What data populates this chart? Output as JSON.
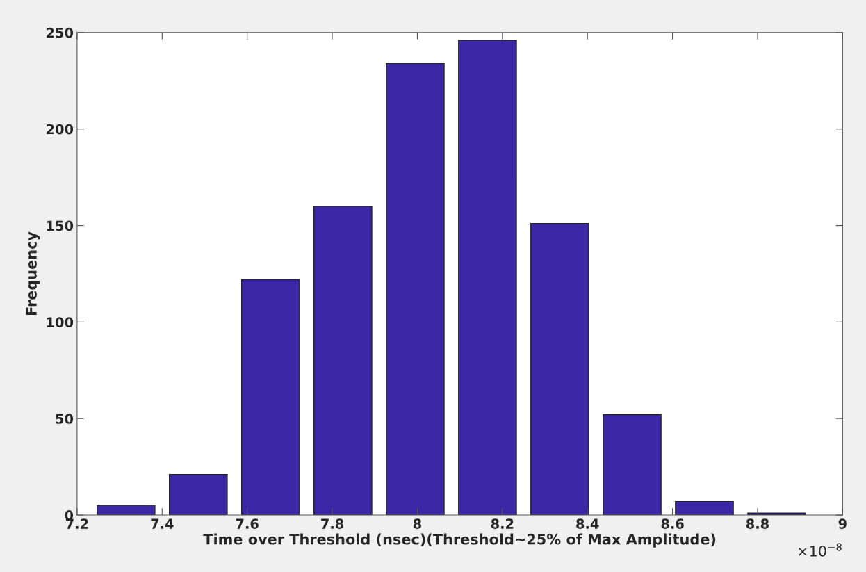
{
  "chart_data": {
    "type": "histogram",
    "xlabel": "Time over Threshold (nsec)(Threshold~25% of Max Amplitude)",
    "ylabel": "Frequency",
    "bins": [
      7.23,
      7.4,
      7.57,
      7.74,
      7.91,
      8.08,
      8.25,
      8.42,
      8.59,
      8.76,
      8.93
    ],
    "values": [
      5,
      21,
      122,
      160,
      234,
      246,
      151,
      52,
      7,
      1
    ],
    "color": "#3c27a6",
    "xlim": [
      7.2,
      9
    ],
    "xticks": [
      7.2,
      7.4,
      7.6,
      7.8,
      8,
      8.2,
      8.4,
      8.6,
      8.8,
      9
    ],
    "ylim": [
      0,
      250
    ],
    "yticks": [
      0,
      50,
      100,
      150,
      200,
      250
    ],
    "grid": false,
    "annotations": [
      "×10$^{−8}$"
    ]
  }
}
